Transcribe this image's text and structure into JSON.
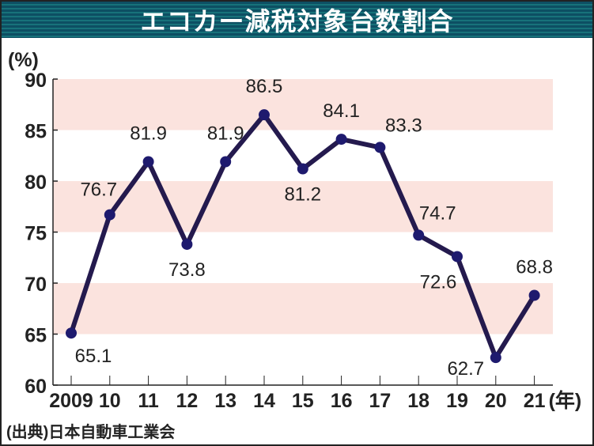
{
  "chart_data": {
    "type": "line",
    "title": "エコカー減税対象台数割合",
    "ylabel": "(%)",
    "xlabel": "(年)",
    "categories": [
      "2009",
      "10",
      "11",
      "12",
      "13",
      "14",
      "15",
      "16",
      "17",
      "18",
      "19",
      "20",
      "21"
    ],
    "values": [
      65.1,
      76.7,
      81.9,
      73.8,
      81.9,
      86.5,
      81.2,
      84.1,
      83.3,
      74.7,
      72.6,
      62.7,
      68.8
    ],
    "value_labels": [
      "65.1",
      "76.7",
      "81.9",
      "73.8",
      "81.9",
      "86.5",
      "81.2",
      "84.1",
      "83.3",
      "74.7",
      "72.6",
      "62.7",
      "68.8"
    ],
    "ylim": [
      60,
      90
    ],
    "yticks": [
      "60",
      "65",
      "70",
      "75",
      "80",
      "85",
      "90"
    ],
    "bands": [
      [
        65,
        70
      ],
      [
        75,
        80
      ],
      [
        85,
        90
      ]
    ],
    "colors": {
      "line": "#241a4e",
      "marker": "#1e1a6e",
      "band": "#fbe3de",
      "title_bg": "#0d4f63"
    },
    "source": "(出典)日本自動車工業会"
  }
}
